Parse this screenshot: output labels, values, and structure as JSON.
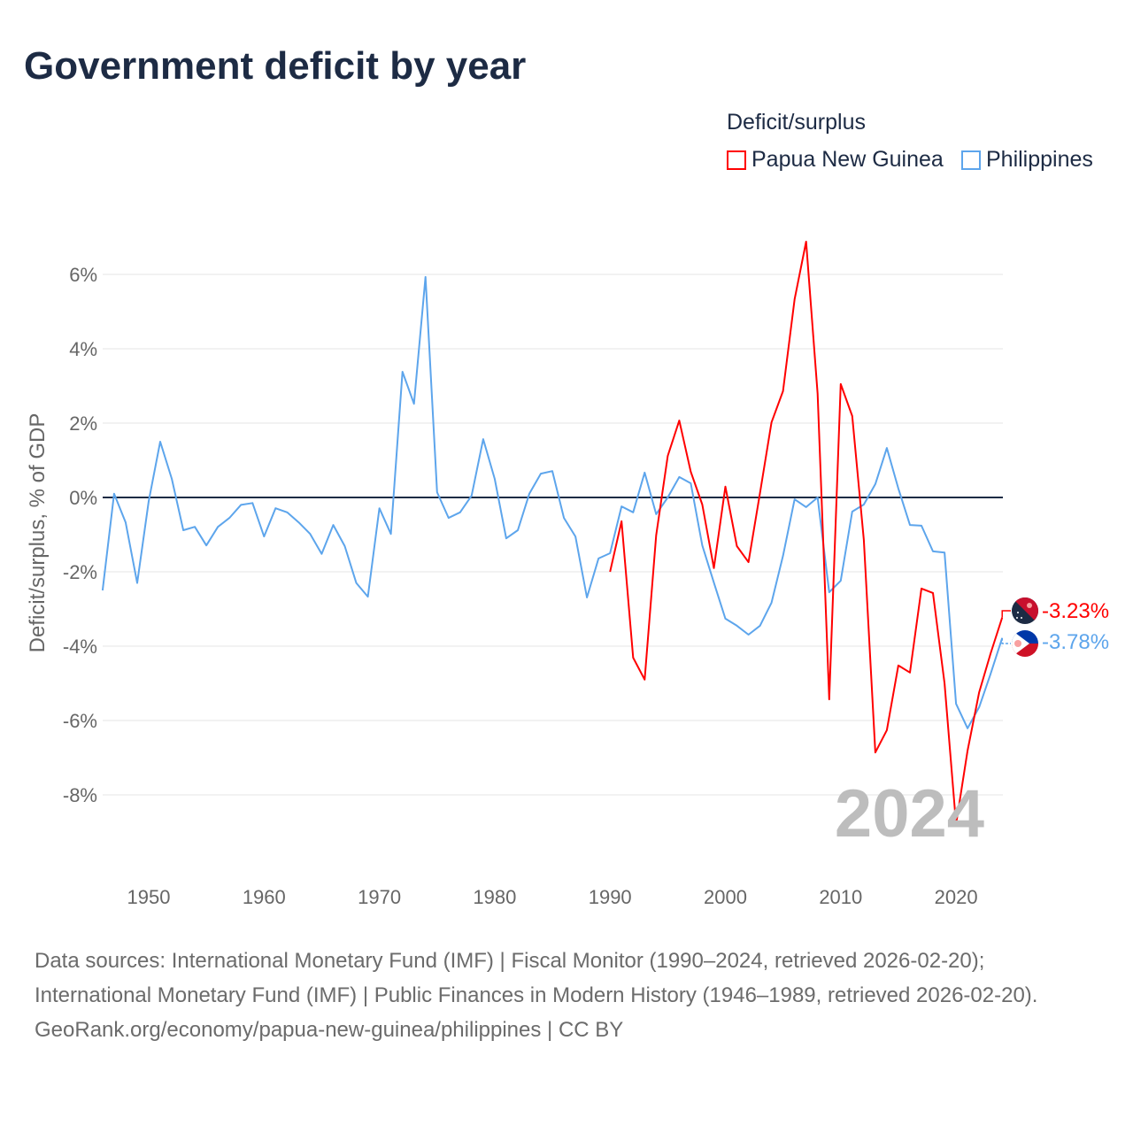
{
  "chart_data": {
    "type": "line",
    "title": "Government deficit by year",
    "ylabel": "Deficit/surplus, % of GDP",
    "xlabel": "",
    "legend_title": "Deficit/surplus",
    "legend_position": "top-right",
    "xlim": [
      1946,
      2024
    ],
    "ylim": [
      -10,
      7
    ],
    "xticks": [
      1950,
      1960,
      1970,
      1980,
      1990,
      2000,
      2010,
      2020
    ],
    "xtick_labels": [
      "1950",
      "1960",
      "1970",
      "1980",
      "1990",
      "2000",
      "2010",
      "2020"
    ],
    "yticks": [
      6,
      4,
      2,
      0,
      -2,
      -4,
      -6,
      -8
    ],
    "ytick_labels": [
      "6%",
      "4%",
      "2%",
      "0%",
      "-2%",
      "-4%",
      "-6%",
      "-8%"
    ],
    "grid": true,
    "year_watermark": "2024",
    "series": [
      {
        "name": "Papua New Guinea",
        "color": "#ff0000",
        "end_label": "-3.23%",
        "start_year": 1990,
        "values": [
          -2.0,
          -0.64,
          -4.31,
          -4.9,
          -1.02,
          1.12,
          2.07,
          0.69,
          -0.19,
          -1.9,
          0.29,
          -1.31,
          -1.74,
          0.12,
          2.02,
          2.86,
          5.33,
          6.88,
          2.79,
          -5.43,
          3.05,
          2.19,
          -1.14,
          -6.86,
          -6.26,
          -4.52,
          -4.71,
          -2.45,
          -2.57,
          -5.0,
          -8.79,
          -6.81,
          -5.24,
          -4.19,
          -3.23
        ]
      },
      {
        "name": "Philippines",
        "color": "#5da5ec",
        "end_label": "-3.78%",
        "start_year": 1946,
        "values": [
          -2.5,
          0.1,
          -0.67,
          -2.3,
          -0.1,
          1.5,
          0.5,
          -0.88,
          -0.79,
          -1.29,
          -0.79,
          -0.55,
          -0.2,
          -0.15,
          -1.05,
          -0.29,
          -0.4,
          -0.67,
          -0.98,
          -1.52,
          -0.74,
          -1.31,
          -2.3,
          -2.67,
          -0.29,
          -0.98,
          3.38,
          2.52,
          5.93,
          0.14,
          -0.55,
          -0.4,
          0.05,
          1.57,
          0.5,
          -1.1,
          -0.88,
          0.1,
          0.64,
          0.71,
          -0.55,
          -1.05,
          -2.69,
          -1.64,
          -1.5,
          -0.24,
          -0.4,
          0.67,
          -0.45,
          0.0,
          0.55,
          0.38,
          -1.29,
          -2.29,
          -3.26,
          -3.45,
          -3.69,
          -3.45,
          -2.83,
          -1.57,
          -0.05,
          -0.26,
          0.0,
          -2.55,
          -2.24,
          -0.38,
          -0.19,
          0.36,
          1.33,
          0.24,
          -0.74,
          -0.76,
          -1.45,
          -1.48,
          -5.55,
          -6.21,
          -5.64,
          -4.74,
          -3.78
        ]
      }
    ]
  },
  "footer": {
    "sources": "Data sources: International Monetary Fund (IMF) | Fiscal Monitor (1990–2024, retrieved 2026-02-20); International Monetary Fund (IMF) | Public Finances in Modern History (1946–1989, retrieved 2026-02-20).",
    "link": "GeoRank.org/economy/papua-new-guinea/philippines | CC BY"
  }
}
